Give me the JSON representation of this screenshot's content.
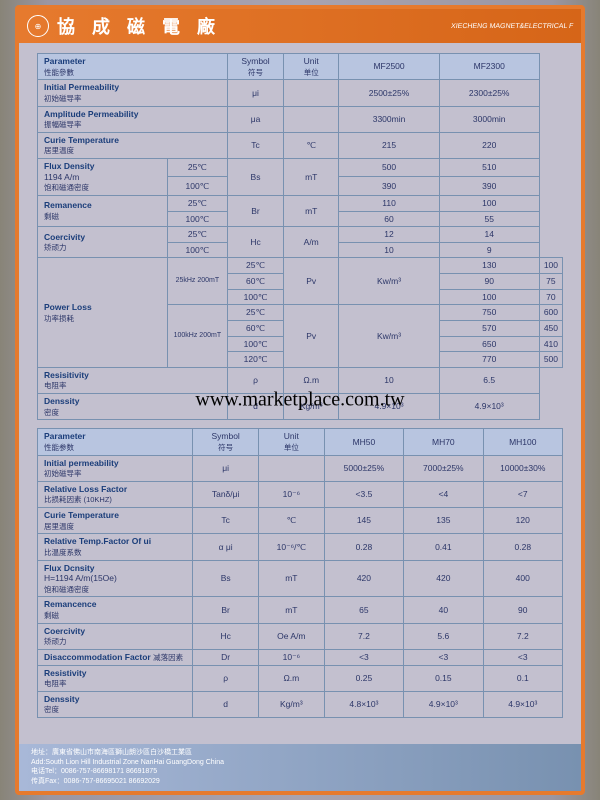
{
  "header": {
    "cn_title": "協 成 磁 電 廠",
    "en_title": "XIECHENG MAGNET&ELECTRICAL F"
  },
  "table1": {
    "headers": {
      "param": "Parameter",
      "param_cn": "性能參數",
      "symbol": "Symbol",
      "symbol_cn": "符号",
      "unit": "Unit",
      "unit_cn": "单位",
      "c1": "MF2500",
      "c2": "MF2300"
    },
    "rows": {
      "init_perm": {
        "label": "Initial Permeability",
        "cn": "初始磁导率",
        "symbol": "μi",
        "c1": "2500±25%",
        "c2": "2300±25%"
      },
      "amp_perm": {
        "label": "Amplitude Permeability",
        "cn": "振幅磁导率",
        "symbol": "μa",
        "c1": "3300min",
        "c2": "3000min"
      },
      "curie": {
        "label": "Curie Temperature",
        "cn": "居里温度",
        "symbol": "Tc",
        "unit": "℃",
        "c1": "215",
        "c2": "220"
      },
      "flux": {
        "label": "Flux Density",
        "detail": "1194 A/m",
        "cn": "饱和磁通密度",
        "symbol": "Bs",
        "unit": "mT",
        "t25": "25℃",
        "t100": "100℃",
        "c1_25": "500",
        "c1_100": "390",
        "c2_25": "510",
        "c2_100": "390"
      },
      "rem": {
        "label": "Remanence",
        "cn": "剩磁",
        "symbol": "Br",
        "unit": "mT",
        "c1_25": "110",
        "c1_100": "60",
        "c2_25": "100",
        "c2_100": "55"
      },
      "coer": {
        "label": "Coercivity",
        "cn": "矫顽力",
        "symbol": "Hc",
        "unit": "A/m",
        "c1_25": "12",
        "c1_100": "10",
        "c2_25": "14",
        "c2_100": "9"
      },
      "power": {
        "label": "Power Loss",
        "cn": "功率损耗",
        "f1": "25kHz 200mT",
        "f2": "100kHz 200mT",
        "t25": "25℃",
        "t60": "60℃",
        "t100": "100℃",
        "t120": "120℃",
        "symbol": "Pv",
        "unit": "Kw/m³",
        "f1_25_c1": "130",
        "f1_60_c1": "90",
        "f1_100_c1": "100",
        "f1_25_c2": "100",
        "f1_60_c2": "75",
        "f1_100_c2": "70",
        "f2_25_c1": "750",
        "f2_60_c1": "570",
        "f2_100_c1": "650",
        "f2_120_c1": "770",
        "f2_25_c2": "600",
        "f2_60_c2": "450",
        "f2_100_c2": "410",
        "f2_120_c2": "500"
      },
      "resist": {
        "label": "Resisitivity",
        "cn": "电阻率",
        "symbol": "ρ",
        "unit": "Ω.m",
        "c1": "10",
        "c2": "6.5"
      },
      "density": {
        "label": "Denssity",
        "cn": "密度",
        "symbol": "d",
        "unit": "Kg/m³",
        "c1": "4.9×10³",
        "c2": "4.9×10³"
      }
    }
  },
  "table2": {
    "headers": {
      "param": "Parameter",
      "param_cn": "性能参数",
      "symbol": "Symbol",
      "symbol_cn": "符号",
      "unit": "Unit",
      "unit_cn": "单位",
      "c1": "MH50",
      "c2": "MH70",
      "c3": "MH100"
    },
    "rows": {
      "init": {
        "label": "Initial permeability",
        "cn": "初始磁导率",
        "symbol": "μi",
        "c1": "5000±25%",
        "c2": "7000±25%",
        "c3": "10000±30%"
      },
      "rlf": {
        "label": "Relative Loss Factor",
        "cn": "比损耗因素 (10KHZ)",
        "symbol": "Tanδ/μi",
        "unit": "10⁻⁶",
        "c1": "<3.5",
        "c2": "<4",
        "c3": "<7"
      },
      "curie": {
        "label": "Curie Temperature",
        "cn": "居里温度",
        "symbol": "Tc",
        "unit": "℃",
        "c1": "145",
        "c2": "135",
        "c3": "120"
      },
      "rtf": {
        "label": "Relative Temp.Factor Of ui",
        "cn": "比温度系数",
        "symbol": "α μi",
        "unit": "10⁻⁶/℃",
        "c1": "0.28",
        "c2": "0.41",
        "c3": "0.28"
      },
      "flux": {
        "label": "Flux Dcnsity",
        "detail": "H=1194 A/m(15Oe)",
        "cn": "饱和磁通密度",
        "symbol": "Bs",
        "unit": "mT",
        "c1": "420",
        "c2": "420",
        "c3": "400"
      },
      "rem": {
        "label": "Remancence",
        "cn": "剩磁",
        "symbol": "Br",
        "unit": "mT",
        "c1": "65",
        "c2": "40",
        "c3": "90"
      },
      "coer": {
        "label": "Coercivity",
        "cn": "矫顽力",
        "symbol": "Hc",
        "unit": "Oe A/m",
        "c1": "7.2",
        "c2": "5.6",
        "c3": "7.2"
      },
      "disac": {
        "label": "Disaccommodation Factor",
        "cn": "减落因素",
        "symbol": "Dr",
        "unit": "10⁻⁶",
        "c1": "<3",
        "c2": "<3",
        "c3": "<3"
      },
      "resist": {
        "label": "Resistivity",
        "cn": "电阻率",
        "symbol": "ρ",
        "unit": "Ω.m",
        "c1": "0.25",
        "c2": "0.15",
        "c3": "0.1"
      },
      "density": {
        "label": "Denssity",
        "cn": "密度",
        "symbol": "d",
        "unit": "Kg/m³",
        "c1": "4.8×10³",
        "c2": "4.9×10³",
        "c3": "4.9×10³"
      }
    }
  },
  "footer": {
    "addr_cn": "地址：廣東省佛山市南海區獅山朗沙區白沙橋工業區",
    "addr_en": "Add:South Lion Hill Industrial Zone NanHai GuangDong China",
    "tel": "电话Tel：0086-757-86698171  86691875",
    "fax": "传真Fax：0086-757-86695021 86692029"
  },
  "watermark": "www.marketplace.com.tw"
}
